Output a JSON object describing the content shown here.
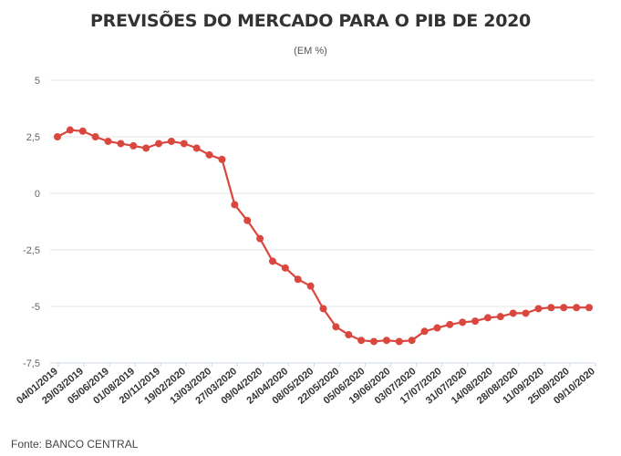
{
  "header": {
    "title": "PREVISÕES DO MERCADO PARA O PIB DE 2020",
    "subtitle": "(EM %)"
  },
  "footer": {
    "source": "Fonte: BANCO CENTRAL"
  },
  "colors": {
    "series": "#d9473f",
    "grid": "#e6e6e6",
    "axis": "#cfd8e6"
  },
  "chart_data": {
    "type": "line",
    "title": "PREVISÕES DO MERCADO PARA O PIB DE 2020",
    "subtitle": "(EM %)",
    "ylim": [
      -7.5,
      5
    ],
    "yticks": [
      5,
      2.5,
      0,
      -2.5,
      -5,
      -7.5
    ],
    "ytick_labels": [
      "5",
      "2,5",
      "0",
      "-2,5",
      "-5",
      "-7,5"
    ],
    "grid": true,
    "x_labels": [
      "04/01/2019",
      "29/03/2019",
      "05/06/2019",
      "01/08/2019",
      "20/11/2019",
      "19/02/2020",
      "13/03/2020",
      "27/03/2020",
      "09/04/2020",
      "24/04/2020",
      "08/05/2020",
      "22/05/2020",
      "05/06/2020",
      "19/06/2020",
      "03/07/2020",
      "17/07/2020",
      "31/07/2020",
      "14/08/2020",
      "28/08/2020",
      "11/09/2020",
      "25/09/2020",
      "09/10/2020"
    ],
    "series": [
      {
        "values": [
          2.5,
          2.8,
          2.75,
          2.5,
          2.3,
          2.2,
          2.1,
          2.0,
          2.2,
          2.3,
          2.2,
          2.0,
          1.7,
          1.5,
          -0.5,
          -1.2,
          -2.0,
          -3.0,
          -3.3,
          -3.8,
          -4.1,
          -5.1,
          -5.9,
          -6.25,
          -6.5,
          -6.55,
          -6.5,
          -6.55,
          -6.5,
          -6.1,
          -5.95,
          -5.8,
          -5.7,
          -5.65,
          -5.5,
          -5.45,
          -5.3,
          -5.3,
          -5.1,
          -5.05,
          -5.05,
          -5.05,
          -5.05
        ]
      }
    ]
  }
}
